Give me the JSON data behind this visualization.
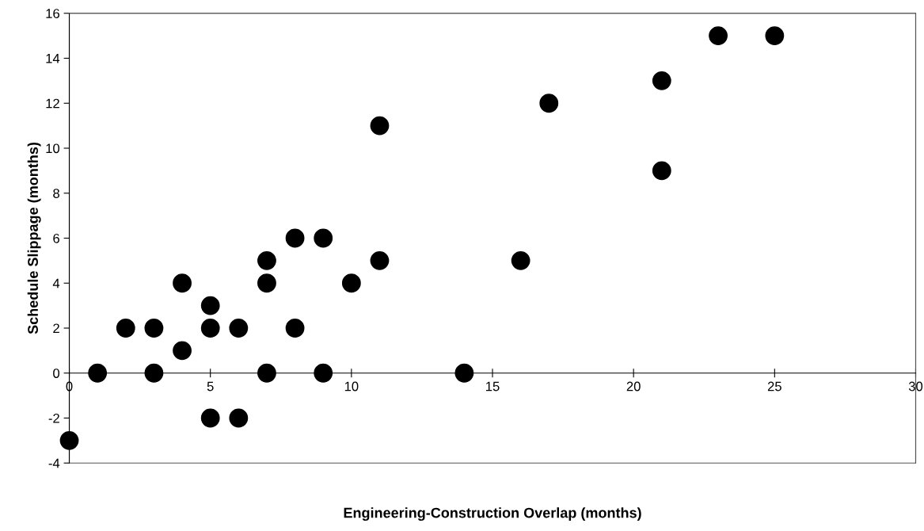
{
  "chart_data": {
    "type": "scatter",
    "xlabel": "Engineering-Construction Overlap (months)",
    "ylabel": "Schedule Slippage (months)",
    "x": [
      0,
      1,
      2,
      3,
      3,
      4,
      4,
      5,
      5,
      5,
      6,
      6,
      7,
      7,
      7,
      8,
      8,
      9,
      9,
      10,
      11,
      11,
      14,
      16,
      17,
      21,
      21,
      23,
      25
    ],
    "series": [
      {
        "color": "#000000",
        "values": [
          -3,
          0,
          2,
          2,
          0,
          4,
          1,
          3,
          2,
          -2,
          2,
          -2,
          5,
          4,
          0,
          6,
          2,
          6,
          0,
          4,
          11,
          5,
          0,
          5,
          12,
          13,
          9,
          15,
          15
        ]
      }
    ],
    "xlim": [
      0,
      30
    ],
    "xticks": [
      0,
      5,
      10,
      15,
      20,
      25,
      30
    ],
    "ylim": [
      -4,
      16
    ],
    "yticks": [
      -4,
      -2,
      0,
      2,
      4,
      6,
      8,
      10,
      12,
      14,
      16
    ],
    "marker": "circle",
    "grid": false,
    "legend": false
  }
}
